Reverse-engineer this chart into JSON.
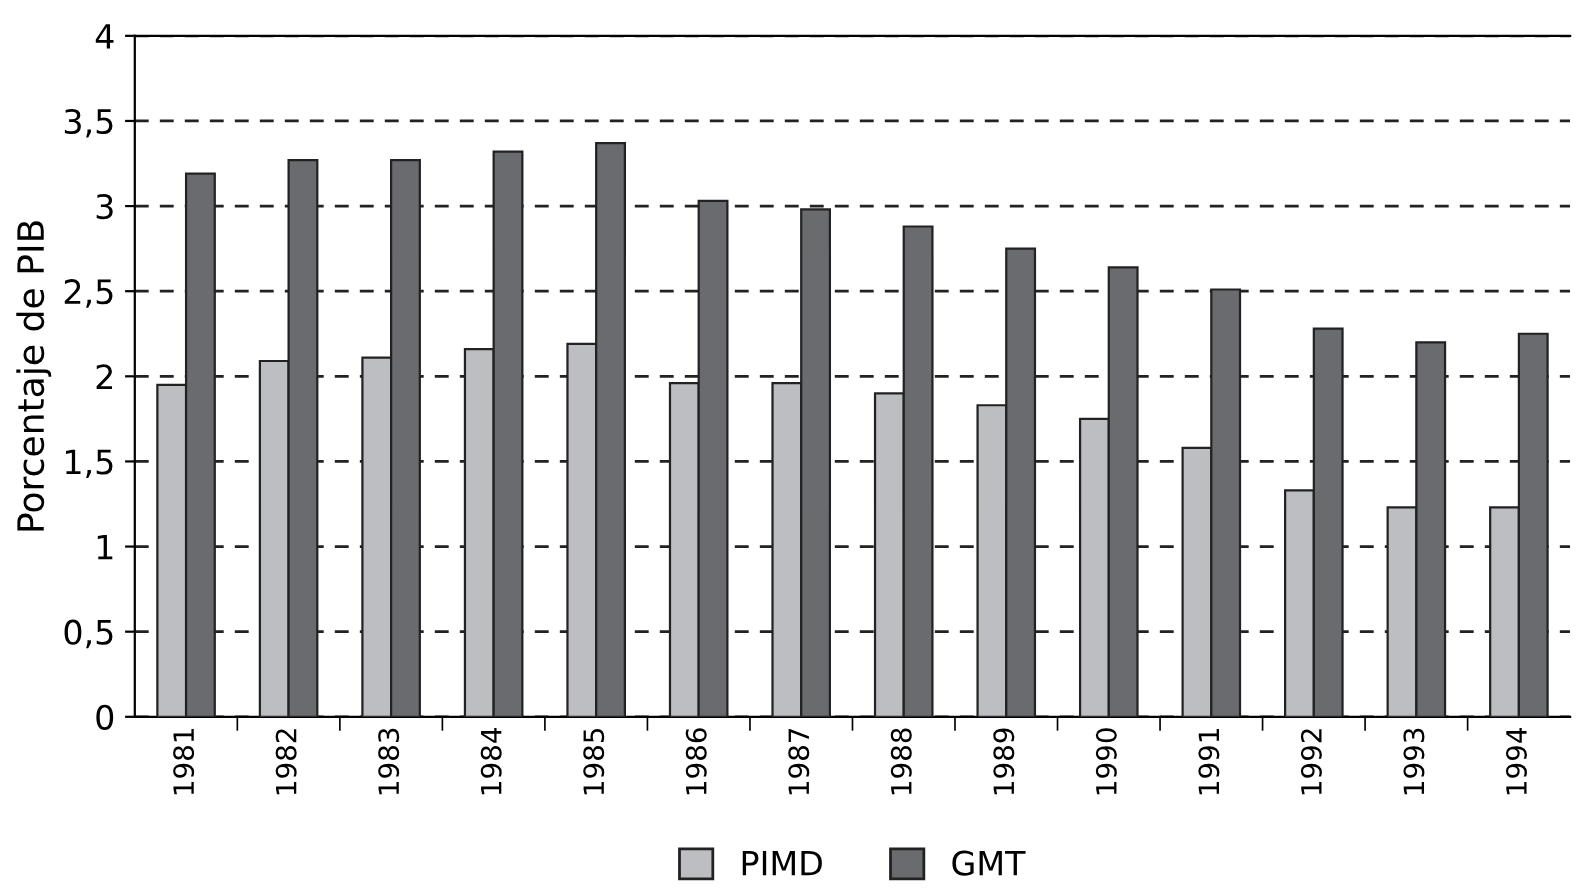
{
  "chart_data": {
    "type": "bar",
    "ylabel": "Porcentaje de PIB",
    "categories": [
      "1981",
      "1982",
      "1983",
      "1984",
      "1985",
      "1986",
      "1987",
      "1988",
      "1989",
      "1990",
      "1991",
      "1992",
      "1993",
      "1994"
    ],
    "series": [
      {
        "name": "PIMD",
        "color": "#bdbec2",
        "values": [
          1.95,
          2.09,
          2.11,
          2.16,
          2.19,
          1.96,
          1.96,
          1.9,
          1.83,
          1.75,
          1.58,
          1.33,
          1.23,
          1.23
        ]
      },
      {
        "name": "GMT",
        "color": "#6a6b6f",
        "values": [
          3.19,
          3.27,
          3.27,
          3.32,
          3.37,
          3.03,
          2.98,
          2.88,
          2.75,
          2.64,
          2.51,
          2.28,
          2.2,
          2.25
        ]
      }
    ],
    "ylim": [
      0,
      4
    ],
    "yticks": [
      0,
      {
        "value": 0.5,
        "label": "0,5"
      },
      1,
      {
        "value": 1.5,
        "label": "1,5"
      },
      2,
      {
        "value": 2.5,
        "label": "2,5"
      },
      3,
      {
        "value": 3.5,
        "label": "3,5"
      },
      4
    ],
    "grid": "y",
    "legend": "bottom",
    "line_style": "dashed"
  }
}
